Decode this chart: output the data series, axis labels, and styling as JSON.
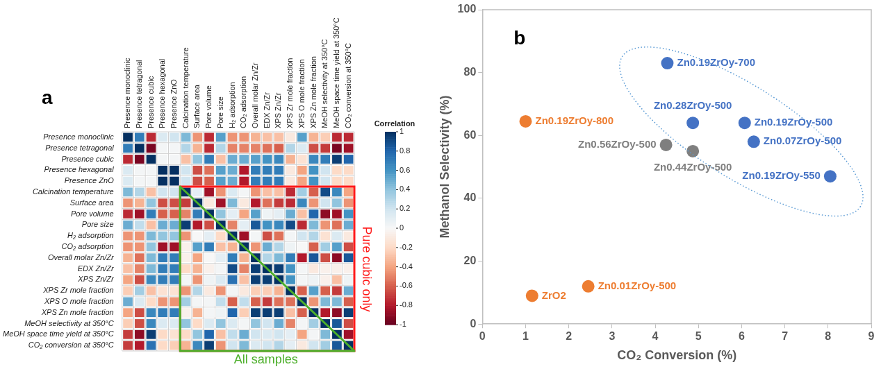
{
  "chart_data": [
    {
      "type": "heatmap",
      "title": "a",
      "clabel": "Correlation",
      "grid": true,
      "categories": [
        "Presence monoclinic",
        "Presence tetragonal",
        "Presence cubic",
        "Presence hexagonal",
        "Presence ZnO",
        "Calcination temperature",
        "Surface area",
        "Pore volume",
        "Pore size",
        "H₂ adsorption",
        "CO₂ adsorption",
        "Overall molar Zn/Zr",
        "EDX Zn/Zr",
        "XPS Zn/Zr",
        "XPS Zr mole fraction",
        "XPS O mole fraction",
        "XPS Zn mole fraction",
        "MeOH selectivity at 350°C",
        "MeOH space time yield at 350°C",
        "CO₂ conversion at 350°C"
      ],
      "y_categories": [
        "Presence monoclinic",
        "Presence tetragonal",
        "Presence cubic",
        "Presence hexagonal",
        "Presence ZnO",
        "Calcination temperature",
        "Surface area",
        "Pore volume",
        "Pore size",
        "H₂ adsorption",
        "CO₂ adsorption",
        "Overall molar Zn/Zr",
        "EDX Zn/Zr",
        "XPS Zn/Zr",
        "XPS Zr mole fraction",
        "XPS O mole fraction",
        "XPS Zn mole fraction",
        "MeOH selectivity at 350°C",
        "MeOH space time yield at 350°C",
        "CO₂ conversion at 350°C"
      ],
      "cells": [
        [
          1,
          0.7,
          -0.75,
          0.15,
          0.2,
          0.45,
          -0.45,
          -0.75,
          0.55,
          -0.45,
          -0.45,
          -0.35,
          -0.3,
          -0.3,
          -0.1,
          0.55,
          -0.35,
          -0.25,
          -0.75,
          -0.75
        ],
        [
          0.7,
          1,
          -0.95,
          0.02,
          0.02,
          0.3,
          -0.35,
          -0.75,
          0.3,
          -0.5,
          -0.5,
          -0.5,
          -0.55,
          -0.6,
          0.3,
          0.15,
          -0.65,
          -0.7,
          -0.95,
          -0.85
        ],
        [
          -0.75,
          -0.95,
          1,
          0.02,
          0.02,
          -0.3,
          0.4,
          0.7,
          -0.3,
          0.5,
          0.5,
          0.55,
          0.6,
          0.65,
          -0.35,
          -0.15,
          0.65,
          0.7,
          0.95,
          0.8
        ],
        [
          0.15,
          0.02,
          0.02,
          1,
          1,
          0.2,
          -0.65,
          -0.55,
          0.55,
          0.5,
          -0.8,
          0.7,
          0.7,
          0.7,
          -0.1,
          -0.4,
          0.6,
          0.2,
          -0.2,
          -0.2
        ],
        [
          0.15,
          0.02,
          0.02,
          1,
          1,
          0.2,
          -0.65,
          -0.6,
          0.55,
          0.5,
          -0.8,
          0.7,
          0.7,
          0.7,
          -0.1,
          -0.4,
          0.6,
          0.2,
          -0.2,
          -0.2
        ],
        [
          0.45,
          0.3,
          -0.3,
          0.2,
          0.2,
          1,
          0.1,
          -0.85,
          -0.45,
          0.15,
          0.02,
          -0.45,
          -0.3,
          -0.3,
          -0.75,
          0.35,
          -0.6,
          0.9,
          0.65,
          -0.4
        ],
        [
          -0.45,
          -0.35,
          0.4,
          -0.65,
          -0.65,
          -0.7,
          1,
          -0.1,
          -0.85,
          0.45,
          -0.1,
          -0.8,
          -0.55,
          -0.7,
          -0.75,
          0.65,
          -0.45,
          0.2,
          0.4,
          -0.45
        ],
        [
          -0.75,
          -0.85,
          0.7,
          -0.6,
          -0.6,
          -0.5,
          0.7,
          1,
          0.4,
          0.1,
          -0.4,
          0.55,
          0.05,
          0.1,
          0.5,
          -0.3,
          0.8,
          -0.9,
          -0.85,
          0.6
        ],
        [
          0.5,
          0.25,
          -0.3,
          0.5,
          0.5,
          0.95,
          -0.8,
          -0.65,
          1,
          -0.5,
          0.1,
          0.85,
          0.6,
          0.65,
          0.9,
          -0.75,
          0.45,
          -0.45,
          -0.55,
          0.5
        ],
        [
          -0.45,
          -0.45,
          0.45,
          0.4,
          0.4,
          -0.45,
          0,
          0.1,
          -0.2,
          1,
          -0.85,
          0.02,
          -0.65,
          -0.55,
          0.02,
          0.2,
          0.3,
          -0.15,
          0.15,
          -0.1
        ],
        [
          -0.45,
          -0.45,
          0.4,
          -0.85,
          -0.85,
          -0.05,
          0.55,
          0.7,
          -0.3,
          -0.35,
          1,
          -0.45,
          0.5,
          0.3,
          0.05,
          0,
          -0.6,
          0.35,
          0.55,
          -0.65
        ],
        [
          -0.35,
          -0.55,
          0.45,
          0.7,
          0.7,
          -0.05,
          -0.4,
          0,
          0.1,
          0.7,
          -0.35,
          1,
          0.3,
          0.45,
          0.7,
          -0.8,
          0.85,
          -0.65,
          -0.9,
          0.85
        ],
        [
          -0.3,
          -0.5,
          0.45,
          0.7,
          0.7,
          -0.2,
          -0.35,
          -0.05,
          0.02,
          0.9,
          -0.5,
          0.95,
          1,
          0.95,
          0.6,
          0.02,
          -0.1,
          -0.05,
          -0.05,
          -0.05
        ],
        [
          -0.4,
          -0.65,
          0.65,
          0.7,
          0.7,
          0.02,
          -0.45,
          0.05,
          0.15,
          0.75,
          -0.3,
          0.95,
          0.95,
          1,
          0.6,
          0.02,
          0.05,
          -0.05,
          -0.3,
          0.05
        ],
        [
          -0.25,
          0.35,
          -0.3,
          -0.15,
          -0.15,
          -0.45,
          0.3,
          -0.1,
          -0.45,
          0.02,
          -0.1,
          -0.25,
          -0.25,
          -0.35,
          1,
          -0.6,
          0.55,
          -0.6,
          -0.7,
          0.5
        ],
        [
          0.5,
          0.15,
          -0.2,
          -0.45,
          -0.45,
          0.35,
          0.02,
          0.02,
          0.25,
          -0.6,
          0.25,
          -0.6,
          -0.7,
          -0.55,
          -0.55,
          1,
          -0.45,
          0.45,
          0.45,
          -0.6
        ],
        [
          -0.4,
          -0.65,
          0.65,
          0.7,
          0.7,
          -0.05,
          -0.35,
          0.02,
          0.05,
          0.8,
          -0.25,
          0.95,
          0.95,
          0.95,
          -0.3,
          -0.6,
          1,
          -0.8,
          -0.9,
          0.95
        ],
        [
          -0.25,
          -0.65,
          0.65,
          0.15,
          0.15,
          0.4,
          -0.2,
          0.15,
          0.4,
          0.15,
          0.02,
          0.4,
          0.2,
          0.5,
          -0.5,
          0.02,
          0.35,
          1,
          0.85,
          -0.65
        ],
        [
          -0.7,
          -0.9,
          0.95,
          -0.2,
          -0.15,
          -0.2,
          0.4,
          0.8,
          -0.3,
          0.25,
          0.5,
          0.2,
          0.15,
          0.2,
          0.1,
          -0.4,
          0.02,
          0.45,
          1,
          -0.85
        ],
        [
          -0.7,
          -0.8,
          0.75,
          -0.2,
          -0.25,
          -0.35,
          0.65,
          0.95,
          -0.45,
          0.2,
          0.45,
          0.15,
          0.2,
          0.3,
          0.1,
          -0.1,
          0.2,
          0.35,
          0.85,
          1
        ]
      ],
      "clim": [
        -1,
        1
      ],
      "cticks": [
        1,
        0.8,
        0.6,
        0.4,
        0.2,
        0,
        -0.2,
        -0.4,
        -0.6,
        -0.8,
        -1
      ],
      "annotations": [
        "Pure cubic only",
        "All samples"
      ]
    },
    {
      "type": "scatter",
      "title": "b",
      "xlabel": "CO₂ Conversion (%)",
      "ylabel": "Methanol Selectivity (%)",
      "marker": "circle",
      "xlim": [
        0,
        9
      ],
      "xticks": [
        0,
        1,
        2,
        3,
        4,
        5,
        6,
        7,
        8,
        9
      ],
      "ylim": [
        0,
        100
      ],
      "yticks": [
        0,
        20,
        40,
        60,
        80,
        100
      ],
      "series": [
        {
          "color": "#ed7d31",
          "x": [
            1.15,
            2.45,
            1.0
          ],
          "values": [
            9,
            12,
            64.5
          ],
          "value_labels": [
            "ZrO2",
            "Zn0.01ZrOy-500",
            "Zn0.19ZrOy-800"
          ]
        },
        {
          "color": "#7f7f7f",
          "x": [
            4.25,
            4.87
          ],
          "values": [
            57,
            55
          ],
          "value_labels": [
            "Zn0.56ZrOy-500",
            "Zn0.44ZrOy-500"
          ]
        },
        {
          "color": "#4472c4",
          "x": [
            4.28,
            4.87,
            6.07,
            6.28,
            8.05
          ],
          "values": [
            83,
            64,
            64,
            58,
            47
          ],
          "value_labels": [
            "Zn0.19ZrOy-700",
            "Zn0.28ZrOy-500",
            "Zn0.19ZrOy-500",
            "Zn0.07ZrOy-500",
            "Zn0.19ZrOy-550"
          ]
        }
      ]
    }
  ]
}
